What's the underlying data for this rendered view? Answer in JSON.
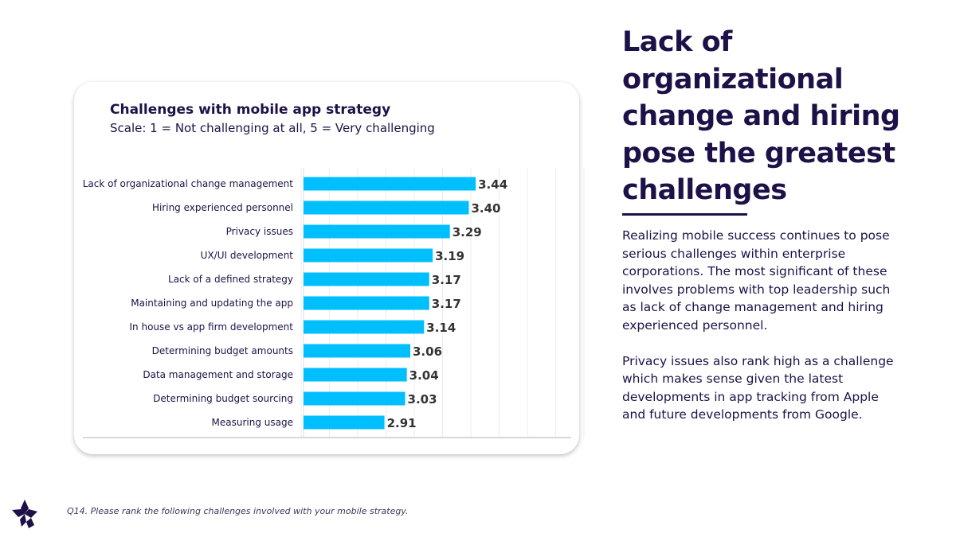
{
  "headline": "Lack of organizational change and hiring pose the greatest challenges",
  "body": {
    "paragraph1": "Realizing mobile success continues to pose serious challenges within enterprise corporations. The most significant of these involves problems with top leadership such as lack of change management and hiring experienced personnel.",
    "paragraph2": "Privacy issues also rank high as a challenge which makes sense given the latest developments in app tracking from Apple and future developments from Google."
  },
  "footnote": "Q14. Please rank the following challenges involved with your mobile strategy.",
  "logo_icon": "star-leaf-logo-icon",
  "colors": {
    "bar": "#00bfff",
    "text": "#1e1147",
    "label_value": "#333333"
  },
  "chart_data": {
    "type": "bar",
    "orientation": "horizontal",
    "title": "Challenges with mobile app strategy",
    "subtitle": "Scale: 1 = Not challenging at all, 5 = Very challenging",
    "categories": [
      "Lack of organizational change management",
      "Hiring experienced personnel",
      "Privacy issues",
      "UX/UI development",
      "Lack of a defined strategy",
      "Maintaining and updating the app",
      "In house vs app firm development",
      "Determining budget amounts",
      "Data management and storage",
      "Determining budget sourcing",
      "Measuring usage"
    ],
    "values": [
      3.44,
      3.4,
      3.29,
      3.19,
      3.17,
      3.17,
      3.14,
      3.06,
      3.04,
      3.03,
      2.91
    ],
    "value_labels": [
      "3.44",
      "3.40",
      "3.29",
      "3.19",
      "3.17",
      "3.17",
      "3.14",
      "3.06",
      "3.04",
      "3.03",
      "2.91"
    ],
    "xlim": [
      2.44,
      3.99
    ],
    "xlabel": "",
    "ylabel": "",
    "grid": true
  }
}
